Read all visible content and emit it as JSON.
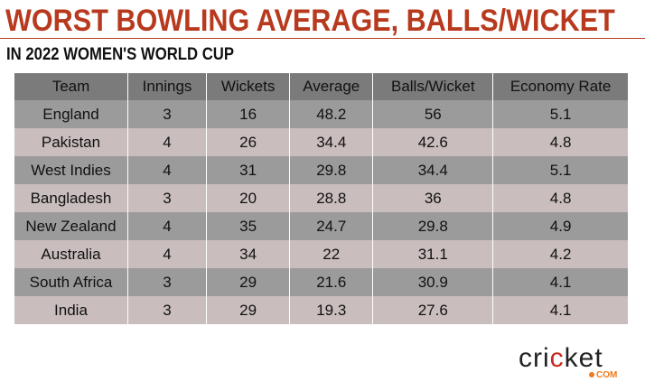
{
  "title": "WORST BOWLING AVERAGE, BALLS/WICKET",
  "subtitle": "IN 2022 WOMEN'S WORLD CUP",
  "headers": [
    "Team",
    "Innings",
    "Wickets",
    "Average",
    "Balls/Wicket",
    "Economy Rate"
  ],
  "rows": [
    [
      "England",
      "3",
      "16",
      "48.2",
      "56",
      "5.1"
    ],
    [
      "Pakistan",
      "4",
      "26",
      "34.4",
      "42.6",
      "4.8"
    ],
    [
      "West Indies",
      "4",
      "31",
      "29.8",
      "34.4",
      "5.1"
    ],
    [
      "Bangladesh",
      "3",
      "20",
      "28.8",
      "36",
      "4.8"
    ],
    [
      "New Zealand",
      "4",
      "35",
      "24.7",
      "29.8",
      "4.9"
    ],
    [
      "Australia",
      "4",
      "34",
      "22",
      "31.1",
      "4.2"
    ],
    [
      "South Africa",
      "3",
      "29",
      "21.6",
      "30.9",
      "4.1"
    ],
    [
      "India",
      "3",
      "29",
      "19.3",
      "27.6",
      "4.1"
    ]
  ],
  "logo": {
    "text_a": "cri",
    "text_c": "c",
    "text_b": "ket",
    "suffix": "COM"
  }
}
